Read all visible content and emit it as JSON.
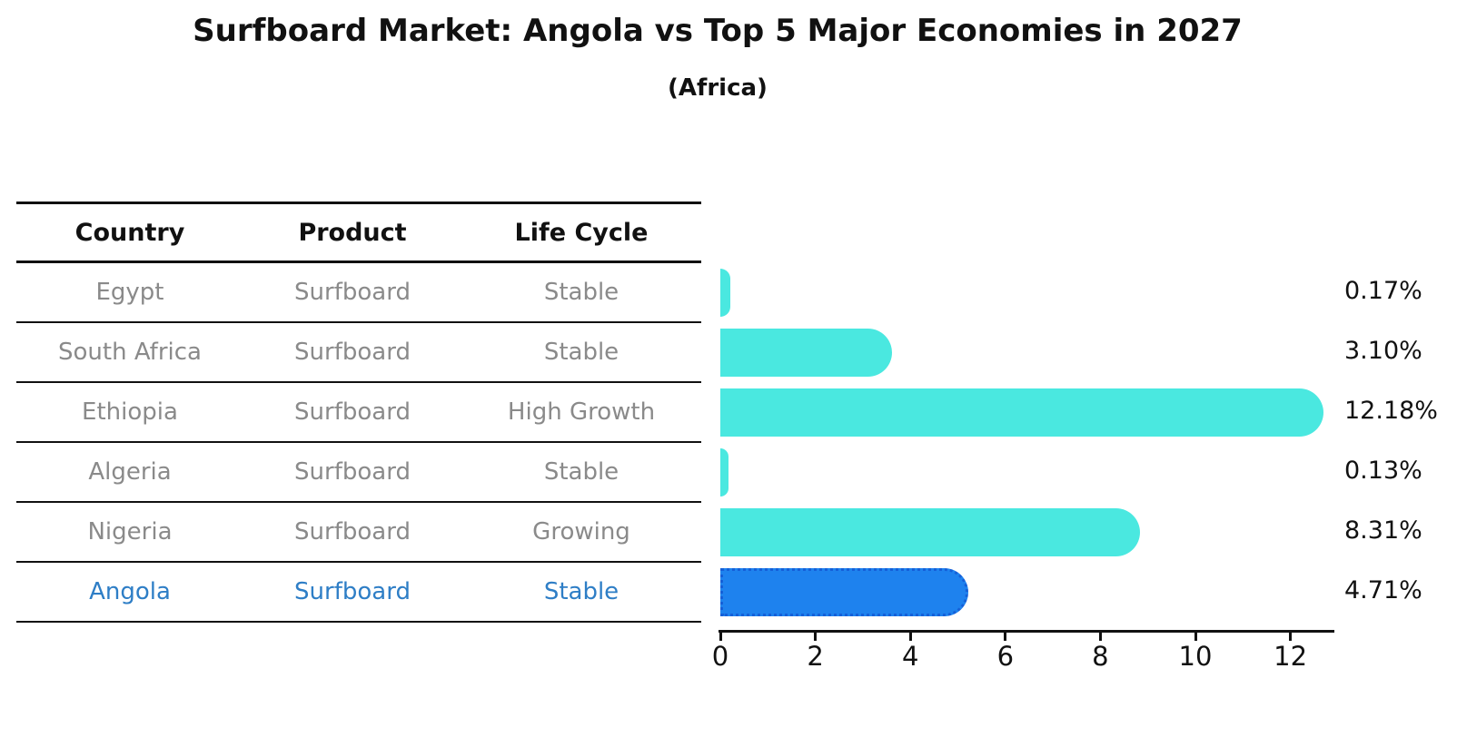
{
  "title": "Surfboard Market: Angola vs Top 5 Major Economies in 2027",
  "subtitle": "(Africa)",
  "colors": {
    "bar_default": "#4ae8e0",
    "bar_highlight_fill": "#1e82ee",
    "bar_highlight_border": "#1560d8",
    "highlight_text": "#2e7ec6",
    "row_text": "#8a8a8a",
    "header_text": "#111111"
  },
  "table": {
    "columns": [
      "Country",
      "Product",
      "Life Cycle"
    ],
    "rows": [
      {
        "country": "Egypt",
        "product": "Surfboard",
        "life_cycle": "Stable",
        "highlight": false
      },
      {
        "country": "South Africa",
        "product": "Surfboard",
        "life_cycle": "Stable",
        "highlight": false
      },
      {
        "country": "Ethiopia",
        "product": "Surfboard",
        "life_cycle": "High Growth",
        "highlight": false
      },
      {
        "country": "Algeria",
        "product": "Surfboard",
        "life_cycle": "Stable",
        "highlight": false
      },
      {
        "country": "Nigeria",
        "product": "Surfboard",
        "life_cycle": "Growing",
        "highlight": false
      },
      {
        "country": "Angola",
        "product": "Surfboard",
        "life_cycle": "Stable",
        "highlight": true
      }
    ]
  },
  "chart_data": {
    "type": "bar",
    "orientation": "horizontal",
    "title": "Surfboard Market: Angola vs Top 5 Major Economies in 2027",
    "subtitle": "(Africa)",
    "categories": [
      "Egypt",
      "South Africa",
      "Ethiopia",
      "Algeria",
      "Nigeria",
      "Angola"
    ],
    "values": [
      0.17,
      3.1,
      12.18,
      0.13,
      8.31,
      4.71
    ],
    "value_labels": [
      "0.17%",
      "3.10%",
      "12.18%",
      "0.13%",
      "8.31%",
      "4.71%"
    ],
    "highlight_category": "Angola",
    "xlabel": "",
    "ylabel": "",
    "xlim": [
      0,
      12.9
    ],
    "xticks": [
      0,
      2,
      4,
      6,
      8,
      10,
      12
    ],
    "grid": false,
    "legend": false
  }
}
